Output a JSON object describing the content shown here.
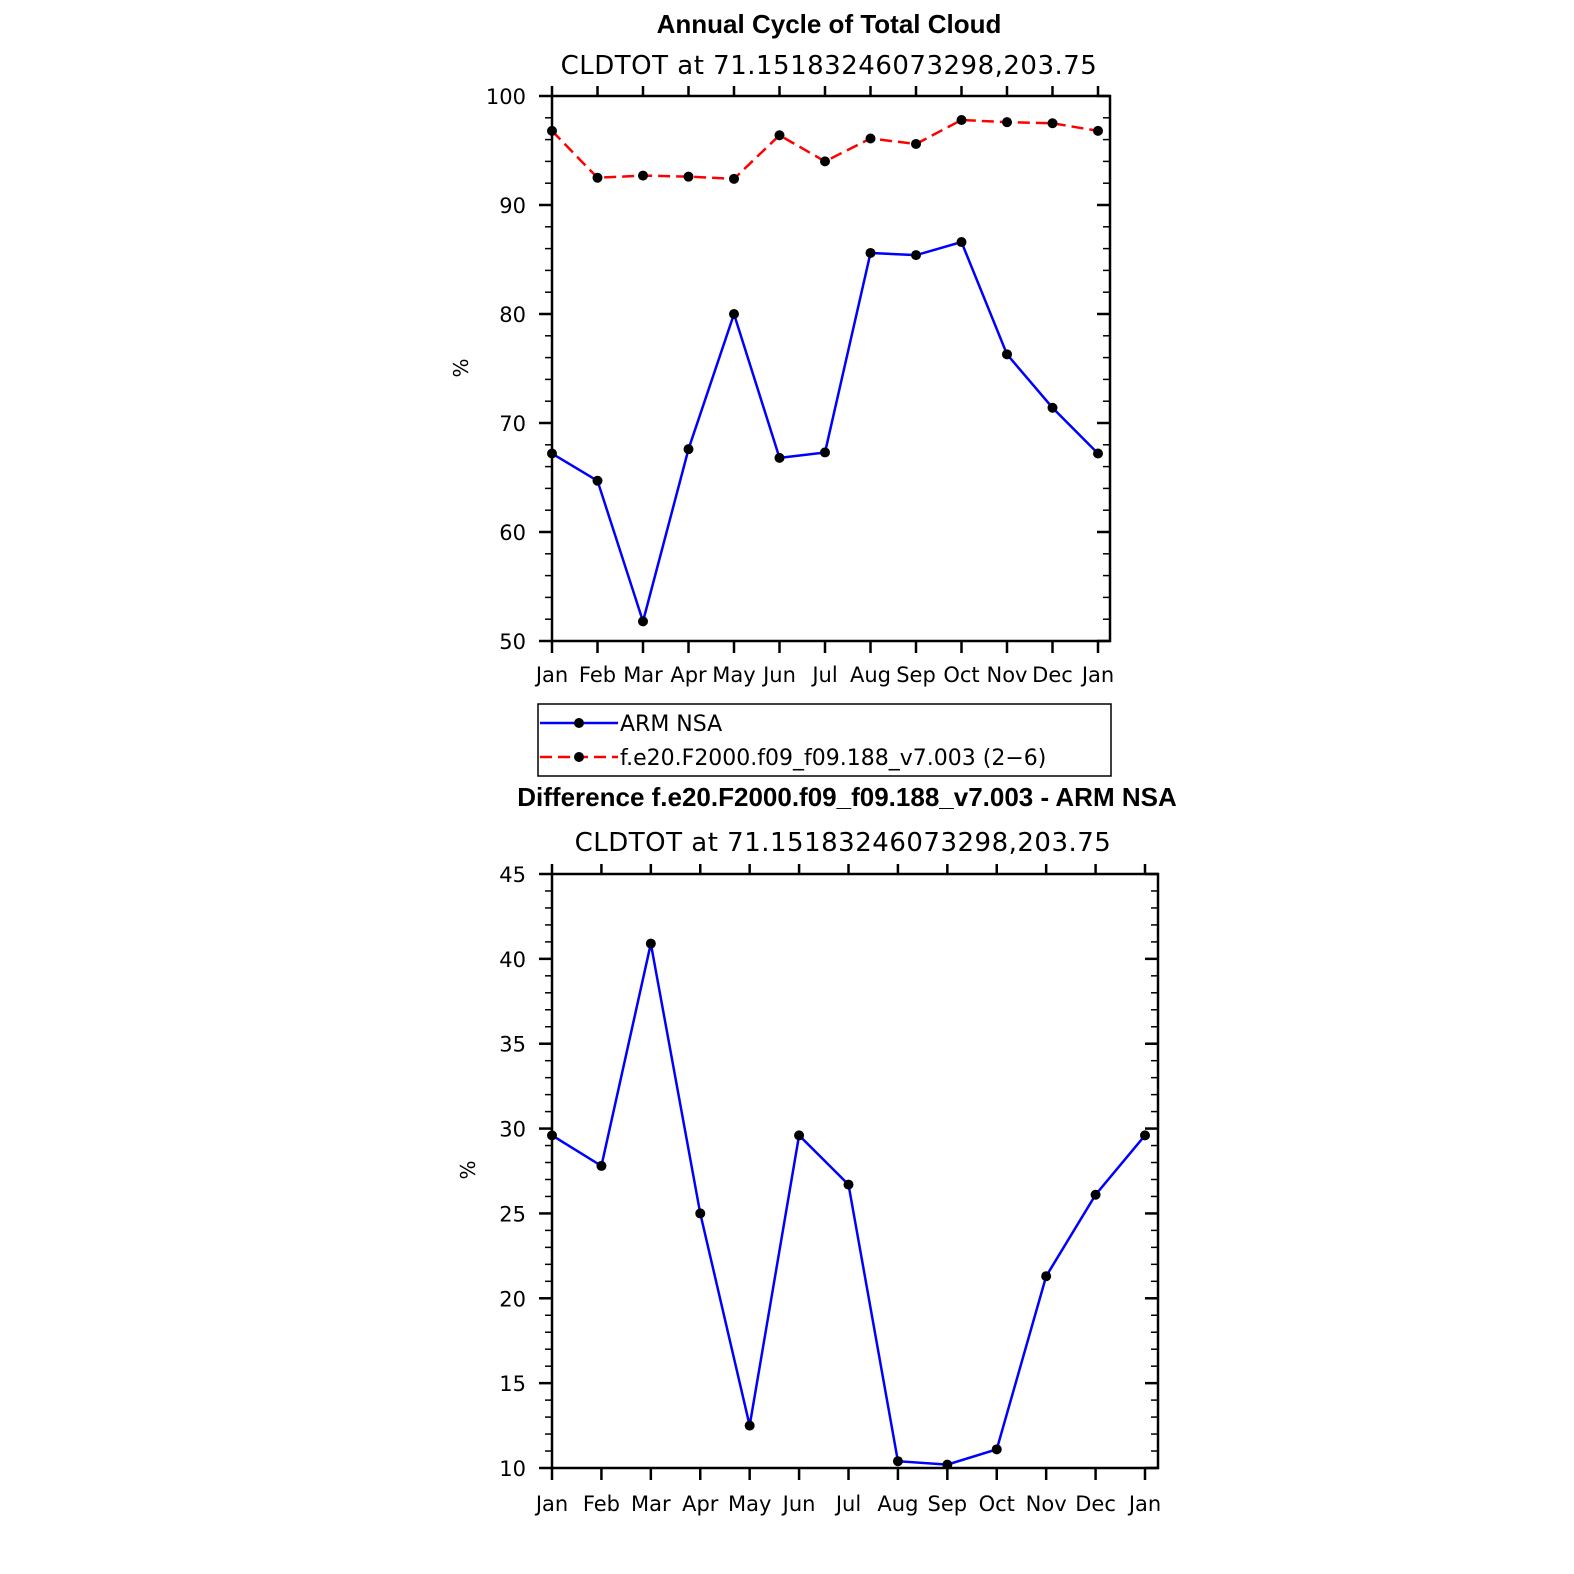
{
  "chart_data": [
    {
      "type": "line",
      "title": "Annual Cycle of Total Cloud",
      "subtitle": "CLDTOT at 71.15183246073298,203.75",
      "xlabel": "",
      "ylabel": "%",
      "categories": [
        "Jan",
        "Feb",
        "Mar",
        "Apr",
        "May",
        "Jun",
        "Jul",
        "Aug",
        "Sep",
        "Oct",
        "Nov",
        "Dec",
        "Jan"
      ],
      "ylim": [
        50,
        100
      ],
      "yticks": [
        50,
        60,
        70,
        80,
        90,
        100
      ],
      "series": [
        {
          "name": "ARM NSA",
          "color": "#0000ff",
          "dash": "solid",
          "values": [
            67.2,
            64.7,
            51.8,
            67.6,
            80.0,
            66.8,
            67.3,
            85.6,
            85.4,
            86.6,
            76.3,
            71.4,
            67.2
          ]
        },
        {
          "name": "f.e20.F2000.f09_f09.188_v7.003 (2-6)",
          "color": "#ff0000",
          "dash": "dashed",
          "values": [
            96.8,
            92.5,
            92.7,
            92.6,
            92.4,
            96.4,
            94.0,
            96.1,
            95.6,
            97.8,
            97.6,
            97.5,
            96.8
          ]
        }
      ],
      "legend": [
        "ARM NSA",
        "f.e20.F2000.f09_f09.188_v7.003 (2−6)"
      ]
    },
    {
      "type": "line",
      "title": "Difference f.e20.F2000.f09_f09.188_v7.003 - ARM NSA",
      "subtitle": "CLDTOT at 71.15183246073298,203.75",
      "xlabel": "",
      "ylabel": "%",
      "categories": [
        "Jan",
        "Feb",
        "Mar",
        "Apr",
        "May",
        "Jun",
        "Jul",
        "Aug",
        "Sep",
        "Oct",
        "Nov",
        "Dec",
        "Jan"
      ],
      "ylim": [
        10,
        45
      ],
      "yticks": [
        10,
        15,
        20,
        25,
        30,
        35,
        40,
        45
      ],
      "series": [
        {
          "name": "Difference",
          "color": "#0000ff",
          "dash": "solid",
          "values": [
            29.6,
            27.8,
            40.9,
            25.0,
            12.5,
            29.6,
            26.7,
            10.4,
            10.2,
            11.1,
            21.3,
            26.1,
            29.6
          ]
        }
      ]
    }
  ]
}
